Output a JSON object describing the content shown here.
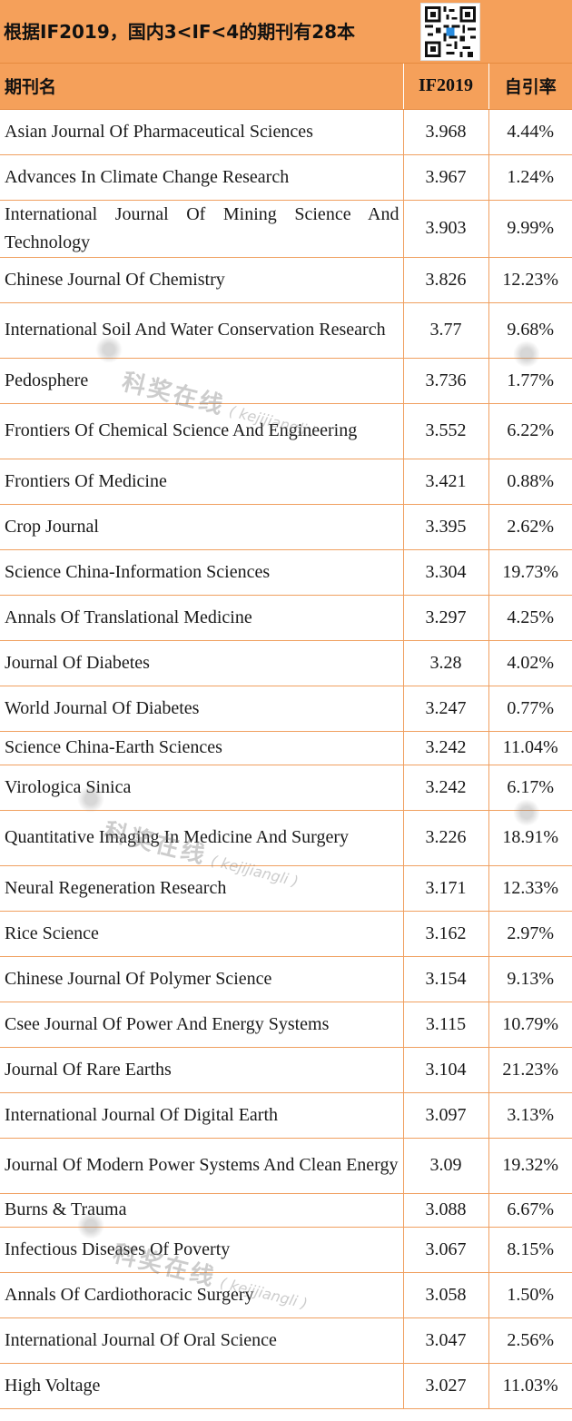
{
  "banner": {
    "title": "根据IF2019，国内3<IF<4的期刊有28本",
    "qr_icon": "qr-code-icon"
  },
  "table": {
    "headers": {
      "name": "期刊名",
      "if": "IF2019",
      "self_cite": "自引率"
    },
    "rows": [
      {
        "name": "Asian Journal Of Pharmaceutical Sciences",
        "if": "3.968",
        "self_cite": "4.44%"
      },
      {
        "name": "Advances In Climate Change Research",
        "if": "3.967",
        "self_cite": "1.24%"
      },
      {
        "name": "International Journal Of Mining Science And Technology",
        "if": "3.903",
        "self_cite": "9.99%"
      },
      {
        "name": "Chinese Journal Of Chemistry",
        "if": "3.826",
        "self_cite": "12.23%"
      },
      {
        "name": "International Soil And Water Conservation Research",
        "if": "3.77",
        "self_cite": "9.68%"
      },
      {
        "name": "Pedosphere",
        "if": "3.736",
        "self_cite": "1.77%"
      },
      {
        "name": "Frontiers Of Chemical Science And Engineering",
        "if": "3.552",
        "self_cite": "6.22%"
      },
      {
        "name": "Frontiers Of Medicine",
        "if": "3.421",
        "self_cite": "0.88%"
      },
      {
        "name": "Crop Journal",
        "if": "3.395",
        "self_cite": "2.62%"
      },
      {
        "name": "Science China-Information Sciences",
        "if": "3.304",
        "self_cite": "19.73%"
      },
      {
        "name": "Annals Of Translational Medicine",
        "if": "3.297",
        "self_cite": "4.25%"
      },
      {
        "name": "Journal Of Diabetes",
        "if": "3.28",
        "self_cite": "4.02%"
      },
      {
        "name": "World Journal Of Diabetes",
        "if": "3.247",
        "self_cite": "0.77%"
      },
      {
        "name": "Science China-Earth Sciences",
        "if": "3.242",
        "self_cite": "11.04%"
      },
      {
        "name": "Virologica Sinica",
        "if": "3.242",
        "self_cite": "6.17%"
      },
      {
        "name": "Quantitative Imaging In Medicine And Surgery",
        "if": "3.226",
        "self_cite": "18.91%"
      },
      {
        "name": "Neural Regeneration Research",
        "if": "3.171",
        "self_cite": "12.33%"
      },
      {
        "name": "Rice Science",
        "if": "3.162",
        "self_cite": "2.97%"
      },
      {
        "name": "Chinese Journal Of Polymer Science",
        "if": "3.154",
        "self_cite": "9.13%"
      },
      {
        "name": "Csee Journal Of Power And Energy Systems",
        "if": "3.115",
        "self_cite": "10.79%"
      },
      {
        "name": "Journal Of Rare Earths",
        "if": "3.104",
        "self_cite": "21.23%"
      },
      {
        "name": "International Journal Of Digital Earth",
        "if": "3.097",
        "self_cite": "3.13%"
      },
      {
        "name": "Journal Of Modern Power Systems And Clean Energy",
        "if": "3.09",
        "self_cite": "19.32%"
      },
      {
        "name": "Burns & Trauma",
        "if": "3.088",
        "self_cite": "6.67%"
      },
      {
        "name": "Infectious Diseases Of Poverty",
        "if": "3.067",
        "self_cite": "8.15%"
      },
      {
        "name": "Annals Of Cardiothoracic Surgery",
        "if": "3.058",
        "self_cite": "1.50%"
      },
      {
        "name": "International Journal Of Oral Science",
        "if": "3.047",
        "self_cite": "2.56%"
      },
      {
        "name": "High Voltage",
        "if": "3.027",
        "self_cite": "11.03%"
      }
    ]
  },
  "watermark": {
    "cn": "科奖在线",
    "en": "( kejijiangli )"
  },
  "colors": {
    "header_bg": "#f5a05a",
    "grid": "#f0a060"
  }
}
